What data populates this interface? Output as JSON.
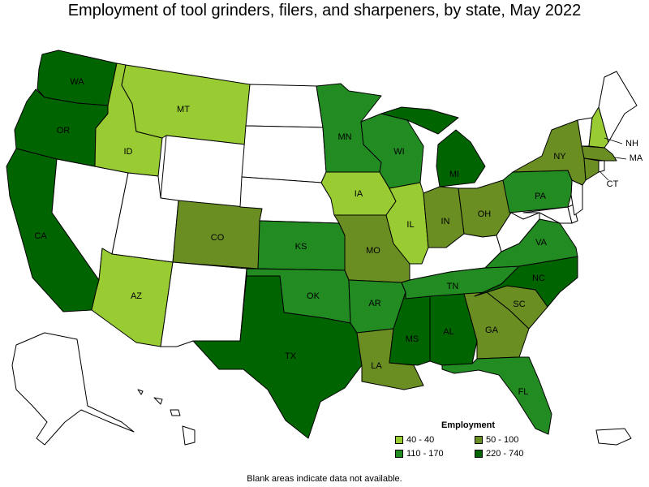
{
  "title": "Employment of tool grinders, filers, and sharpeners, by state, May 2022",
  "footnote": "Blank areas indicate data not available.",
  "legend": {
    "title": "Employment",
    "items": [
      {
        "label": "40 - 40",
        "color": "#99cc33"
      },
      {
        "label": "50 - 100",
        "color": "#6b8e23"
      },
      {
        "label": "110 - 170",
        "color": "#228b22"
      },
      {
        "label": "220 - 740",
        "color": "#006400"
      }
    ]
  },
  "colors": {
    "no_data": "#ffffff",
    "outline": "#000000"
  },
  "states": [
    {
      "abbr": "WA",
      "color": "#006400"
    },
    {
      "abbr": "OR",
      "color": "#006400"
    },
    {
      "abbr": "CA",
      "color": "#006400"
    },
    {
      "abbr": "ID",
      "color": "#99cc33"
    },
    {
      "abbr": "MT",
      "color": "#99cc33"
    },
    {
      "abbr": "AZ",
      "color": "#99cc33"
    },
    {
      "abbr": "CO",
      "color": "#6b8e23"
    },
    {
      "abbr": "TX",
      "color": "#006400"
    },
    {
      "abbr": "OK",
      "color": "#228b22"
    },
    {
      "abbr": "KS",
      "color": "#228b22"
    },
    {
      "abbr": "MN",
      "color": "#228b22"
    },
    {
      "abbr": "IA",
      "color": "#99cc33"
    },
    {
      "abbr": "MO",
      "color": "#6b8e23"
    },
    {
      "abbr": "AR",
      "color": "#228b22"
    },
    {
      "abbr": "LA",
      "color": "#6b8e23"
    },
    {
      "abbr": "WI",
      "color": "#228b22"
    },
    {
      "abbr": "IL",
      "color": "#99cc33"
    },
    {
      "abbr": "MI",
      "color": "#006400"
    },
    {
      "abbr": "IN",
      "color": "#6b8e23"
    },
    {
      "abbr": "OH",
      "color": "#6b8e23"
    },
    {
      "abbr": "MS",
      "color": "#006400"
    },
    {
      "abbr": "AL",
      "color": "#006400"
    },
    {
      "abbr": "TN",
      "color": "#228b22"
    },
    {
      "abbr": "GA",
      "color": "#6b8e23"
    },
    {
      "abbr": "FL",
      "color": "#228b22"
    },
    {
      "abbr": "SC",
      "color": "#6b8e23"
    },
    {
      "abbr": "NC",
      "color": "#006400"
    },
    {
      "abbr": "VA",
      "color": "#228b22"
    },
    {
      "abbr": "PA",
      "color": "#228b22"
    },
    {
      "abbr": "NY",
      "color": "#6b8e23"
    },
    {
      "abbr": "CT",
      "color": "#6b8e23"
    },
    {
      "abbr": "MA",
      "color": "#6b8e23"
    },
    {
      "abbr": "NH",
      "color": "#99cc33"
    },
    {
      "abbr": "NV",
      "color": "#ffffff"
    },
    {
      "abbr": "UT",
      "color": "#ffffff"
    },
    {
      "abbr": "WY",
      "color": "#ffffff"
    },
    {
      "abbr": "NM",
      "color": "#ffffff"
    },
    {
      "abbr": "ND",
      "color": "#ffffff"
    },
    {
      "abbr": "SD",
      "color": "#ffffff"
    },
    {
      "abbr": "NE",
      "color": "#ffffff"
    },
    {
      "abbr": "KY",
      "color": "#ffffff"
    },
    {
      "abbr": "WV",
      "color": "#ffffff"
    },
    {
      "abbr": "MD",
      "color": "#ffffff"
    },
    {
      "abbr": "DE",
      "color": "#ffffff"
    },
    {
      "abbr": "NJ",
      "color": "#ffffff"
    },
    {
      "abbr": "RI",
      "color": "#ffffff"
    },
    {
      "abbr": "VT",
      "color": "#ffffff"
    },
    {
      "abbr": "ME",
      "color": "#ffffff"
    },
    {
      "abbr": "AK",
      "color": "#ffffff"
    },
    {
      "abbr": "HI",
      "color": "#ffffff"
    },
    {
      "abbr": "PR",
      "color": "#ffffff"
    }
  ],
  "labels": [
    "WA",
    "OR",
    "CA",
    "ID",
    "MT",
    "AZ",
    "CO",
    "TX",
    "OK",
    "KS",
    "MN",
    "IA",
    "MO",
    "AR",
    "LA",
    "WI",
    "IL",
    "MI",
    "IN",
    "OH",
    "MS",
    "AL",
    "TN",
    "GA",
    "FL",
    "SC",
    "NC",
    "VA",
    "PA",
    "NY",
    "CT",
    "MA",
    "NH"
  ]
}
